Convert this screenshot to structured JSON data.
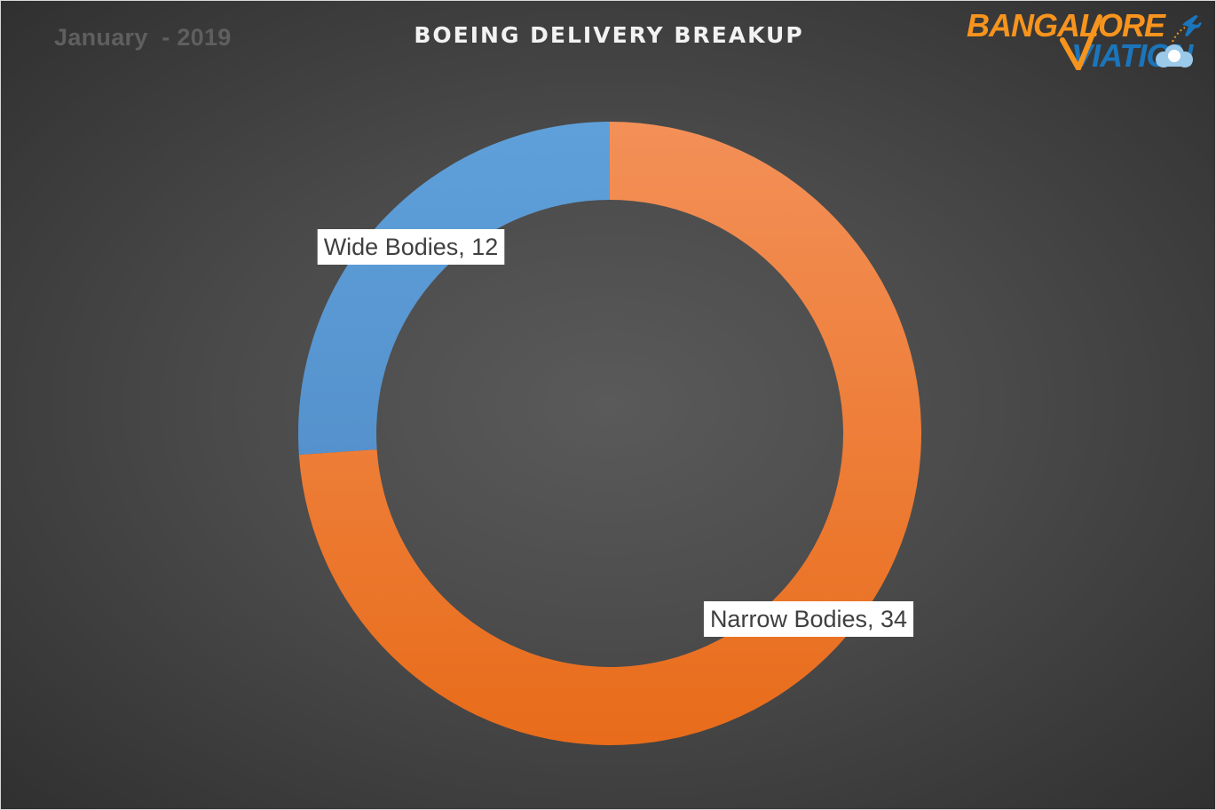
{
  "subtitle": "January  - 2019",
  "logo": {
    "line1": "BANGALORE",
    "line2": "VIATION",
    "colors": {
      "orange": "#f7941d",
      "blue": "#1b75bb"
    }
  },
  "chart_data": {
    "type": "pie",
    "variant": "donut",
    "title": "BOEING DELIVERY BREAKUP",
    "slices": [
      {
        "label": "Narrow Bodies",
        "value": 34,
        "color": "#ed7d31",
        "data_label": "Narrow Bodies, 34"
      },
      {
        "label": "Wide Bodies",
        "value": 12,
        "color": "#5b9bd5",
        "data_label": "Wide Bodies, 12"
      }
    ],
    "start_angle_deg": 0,
    "direction": "clockwise",
    "legend": "none"
  }
}
